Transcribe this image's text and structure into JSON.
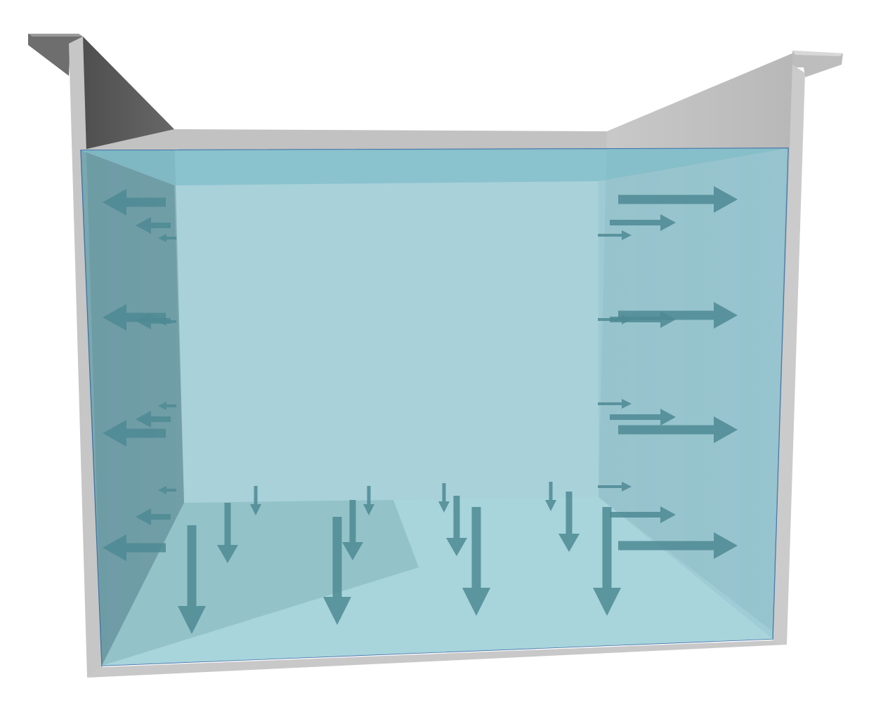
{
  "diagram": {
    "subject": "hydrostatic-pressure-tank",
    "colors": {
      "wall_light": "#c4c4c4",
      "wall_mid": "#b3b3b3",
      "wall_dark": "#5c5c5c",
      "wall_edge": "#9a9a9a",
      "water_fill": "#8fc4cf",
      "water_top": "#7dbcc8",
      "water_floor": "#a8d5dc",
      "water_outline": "#3b6aa5",
      "arrow": "#4e8a93"
    },
    "pressure_arrows": {
      "front_left_levels": 4,
      "front_right_levels": 4,
      "front_bottom_count": 4,
      "mid_side_levels": 4,
      "mid_bottom_count": 4,
      "back_side_levels": 4,
      "back_bottom_count": 4
    }
  }
}
